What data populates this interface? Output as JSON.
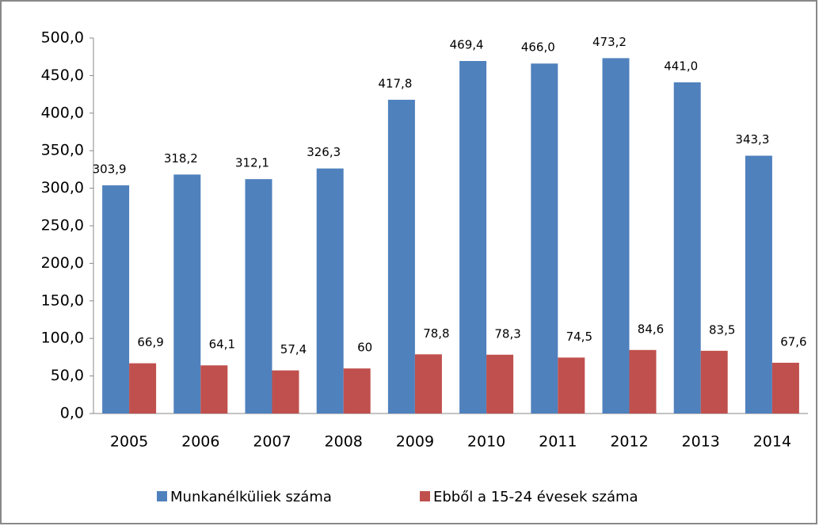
{
  "chart_data": {
    "type": "bar",
    "categories": [
      "2005",
      "2006",
      "2007",
      "2008",
      "2009",
      "2010",
      "2011",
      "2012",
      "2013",
      "2014"
    ],
    "series": [
      {
        "name": "Munkanélküliek száma",
        "color": "#4f81bd",
        "values": [
          303.9,
          318.2,
          312.1,
          326.3,
          417.8,
          469.4,
          466.0,
          473.2,
          441.0,
          343.3
        ],
        "value_labels": [
          "303,9",
          "318,2",
          "312,1",
          "326,3",
          "417,8",
          "469,4",
          "466,0",
          "473,2",
          "441,0",
          "343,3"
        ]
      },
      {
        "name": "Ebből a 15-24 évesek száma",
        "color": "#c0504d",
        "values": [
          66.9,
          64.1,
          57.4,
          60,
          78.8,
          78.3,
          74.5,
          84.6,
          83.5,
          67.6
        ],
        "value_labels": [
          "66,9",
          "64,1",
          "57,4",
          "60",
          "78,8",
          "78,3",
          "74,5",
          "84,6",
          "83,5",
          "67,6"
        ]
      }
    ],
    "ylim": [
      0,
      500
    ],
    "yticks": [
      {
        "value": 0,
        "label": "0,0"
      },
      {
        "value": 50,
        "label": "50,0"
      },
      {
        "value": 100,
        "label": "100,0"
      },
      {
        "value": 150,
        "label": "150,0"
      },
      {
        "value": 200,
        "label": "200,0"
      },
      {
        "value": 250,
        "label": "250,0"
      },
      {
        "value": 300,
        "label": "300,0"
      },
      {
        "value": 350,
        "label": "350,0"
      },
      {
        "value": 400,
        "label": "400,0"
      },
      {
        "value": 450,
        "label": "450,0"
      },
      {
        "value": 500,
        "label": "500,0"
      }
    ],
    "legend": "bottom"
  }
}
